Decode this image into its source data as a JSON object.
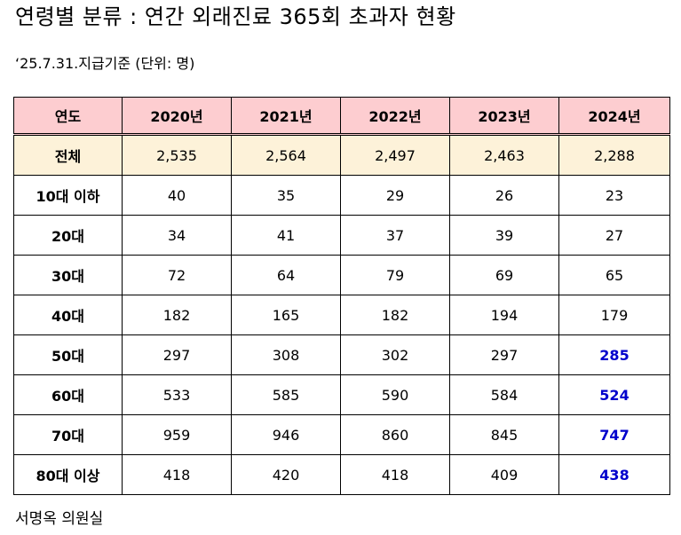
{
  "title": "연령별 분류 : 연간 외래진료 365회 초과자 현황",
  "subtitle": "‘25.7.31.지급기준 (단위:  명)",
  "colors": {
    "header_bg": "#fdcdd0",
    "total_row_bg": "#fdf2d9",
    "highlight_text": "#0000cc"
  },
  "table": {
    "headers": [
      "연도",
      "2020년",
      "2021년",
      "2022년",
      "2023년",
      "2024년"
    ],
    "rows": [
      {
        "label": "전체",
        "values": [
          "2,535",
          "2,564",
          "2,497",
          "2,463",
          "2,288"
        ],
        "highlight_last": false
      },
      {
        "label": "10대 이하",
        "values": [
          "40",
          "35",
          "29",
          "26",
          "23"
        ],
        "highlight_last": false
      },
      {
        "label": "20대",
        "values": [
          "34",
          "41",
          "37",
          "39",
          "27"
        ],
        "highlight_last": false
      },
      {
        "label": "30대",
        "values": [
          "72",
          "64",
          "79",
          "69",
          "65"
        ],
        "highlight_last": false
      },
      {
        "label": "40대",
        "values": [
          "182",
          "165",
          "182",
          "194",
          "179"
        ],
        "highlight_last": false
      },
      {
        "label": "50대",
        "values": [
          "297",
          "308",
          "302",
          "297",
          "285"
        ],
        "highlight_last": true
      },
      {
        "label": "60대",
        "values": [
          "533",
          "585",
          "590",
          "584",
          "524"
        ],
        "highlight_last": true
      },
      {
        "label": "70대",
        "values": [
          "959",
          "946",
          "860",
          "845",
          "747"
        ],
        "highlight_last": true
      },
      {
        "label": "80대 이상",
        "values": [
          "418",
          "420",
          "418",
          "409",
          "438"
        ],
        "highlight_last": true
      }
    ]
  },
  "footer": "서명옥 의원실"
}
